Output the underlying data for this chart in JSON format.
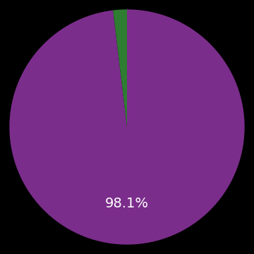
{
  "values": [
    98.1,
    1.9
  ],
  "colors": [
    "#7B2D8B",
    "#2E7D32"
  ],
  "label_text": "98.1%",
  "label_color": "#ffffff",
  "label_fontsize": 14,
  "background_color": "#000000",
  "startangle": 90,
  "figsize": [
    3.6,
    3.6
  ],
  "dpi": 100
}
